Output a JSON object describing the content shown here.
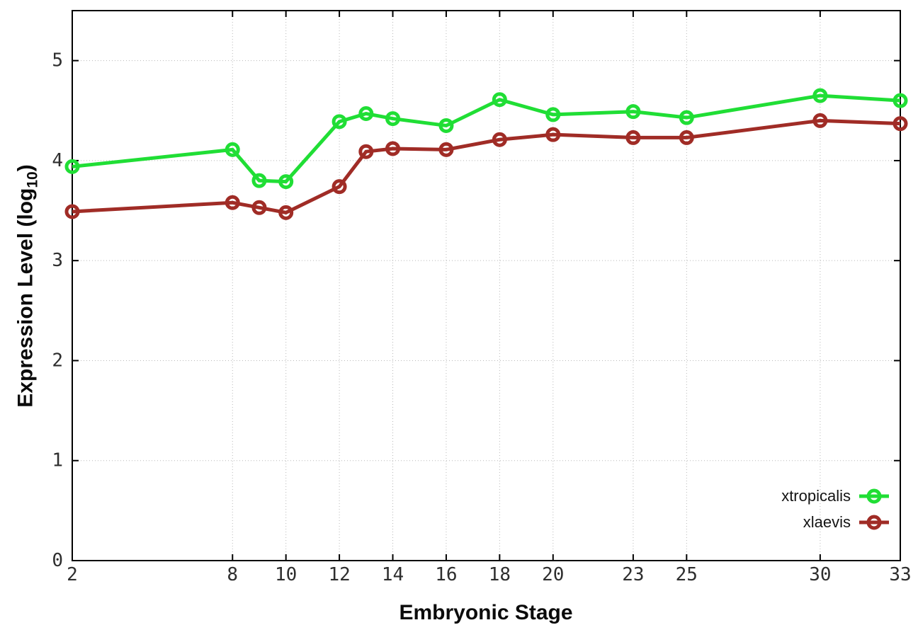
{
  "chart_data": {
    "type": "line",
    "title": "",
    "xlabel": "Embryonic Stage",
    "ylabel": "Expression Level (log10)",
    "ylabel_parts": {
      "prefix": "Expression Level (log",
      "sub": "10",
      "suffix": ")"
    },
    "x": [
      2,
      8,
      9,
      10,
      12,
      13,
      14,
      16,
      18,
      20,
      23,
      25,
      30,
      33
    ],
    "x_ticks": [
      2,
      8,
      10,
      12,
      14,
      16,
      18,
      20,
      23,
      25,
      30,
      33
    ],
    "y_ticks": [
      0,
      1,
      2,
      3,
      4,
      5
    ],
    "xlim": [
      2,
      33
    ],
    "ylim": [
      0,
      5.5
    ],
    "grid": true,
    "marker": "open-circle",
    "legend_position": "inside-bottom-right",
    "background": "#ffffff",
    "axis_color": "#000000",
    "grid_color": "#b8b8b8",
    "series": [
      {
        "name": "xtropicalis",
        "color": "#20de35",
        "values": [
          3.94,
          4.11,
          3.8,
          3.79,
          4.39,
          4.47,
          4.42,
          4.35,
          4.61,
          4.46,
          4.49,
          4.43,
          4.65,
          4.6
        ]
      },
      {
        "name": "xlaevis",
        "color": "#a02c26",
        "values": [
          3.49,
          3.58,
          3.53,
          3.48,
          3.74,
          4.09,
          4.12,
          4.11,
          4.21,
          4.26,
          4.23,
          4.23,
          4.4,
          4.37
        ]
      }
    ]
  }
}
